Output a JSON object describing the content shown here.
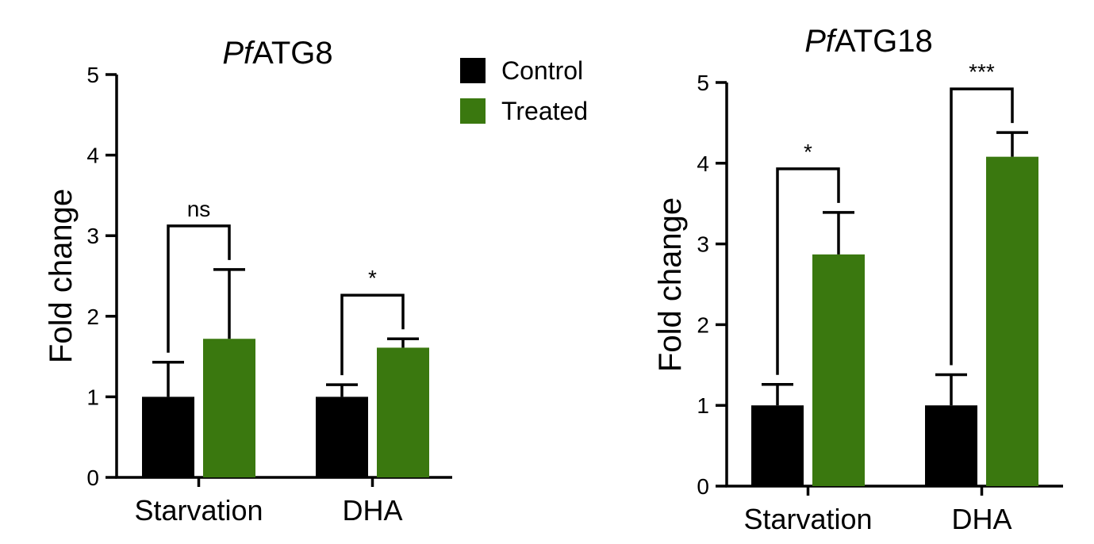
{
  "legend": {
    "entries": [
      {
        "label": "Control",
        "color": "#000000"
      },
      {
        "label": "Treated",
        "color": "#3a780f"
      }
    ]
  },
  "chart_data": [
    {
      "type": "bar",
      "title_italic": "Pf",
      "title_rest": "ATG8",
      "ylabel": "Fold change",
      "xlabel": "",
      "ylim": [
        0,
        5
      ],
      "yticks": [
        "0",
        "1",
        "2",
        "3",
        "4",
        "5"
      ],
      "categories": [
        "Starvation",
        "DHA"
      ],
      "series": [
        {
          "name": "Control",
          "color": "#000000",
          "values": [
            1.0,
            1.0
          ],
          "errors": [
            0.43,
            0.15
          ]
        },
        {
          "name": "Treated",
          "color": "#3a780f",
          "values": [
            1.72,
            1.61
          ],
          "errors": [
            0.86,
            0.11
          ]
        }
      ],
      "significance": [
        {
          "category": "Starvation",
          "label": "ns"
        },
        {
          "category": "DHA",
          "label": "*"
        }
      ]
    },
    {
      "type": "bar",
      "title_italic": "Pf",
      "title_rest": "ATG18",
      "ylabel": "Fold change",
      "xlabel": "",
      "ylim": [
        0,
        5
      ],
      "yticks": [
        "0",
        "1",
        "2",
        "3",
        "4",
        "5"
      ],
      "categories": [
        "Starvation",
        "DHA"
      ],
      "series": [
        {
          "name": "Control",
          "color": "#000000",
          "values": [
            1.0,
            1.0
          ],
          "errors": [
            0.26,
            0.38
          ]
        },
        {
          "name": "Treated",
          "color": "#3a780f",
          "values": [
            2.87,
            4.08
          ],
          "errors": [
            0.52,
            0.3
          ]
        }
      ],
      "significance": [
        {
          "category": "Starvation",
          "label": "*"
        },
        {
          "category": "DHA",
          "label": "***"
        }
      ]
    }
  ]
}
